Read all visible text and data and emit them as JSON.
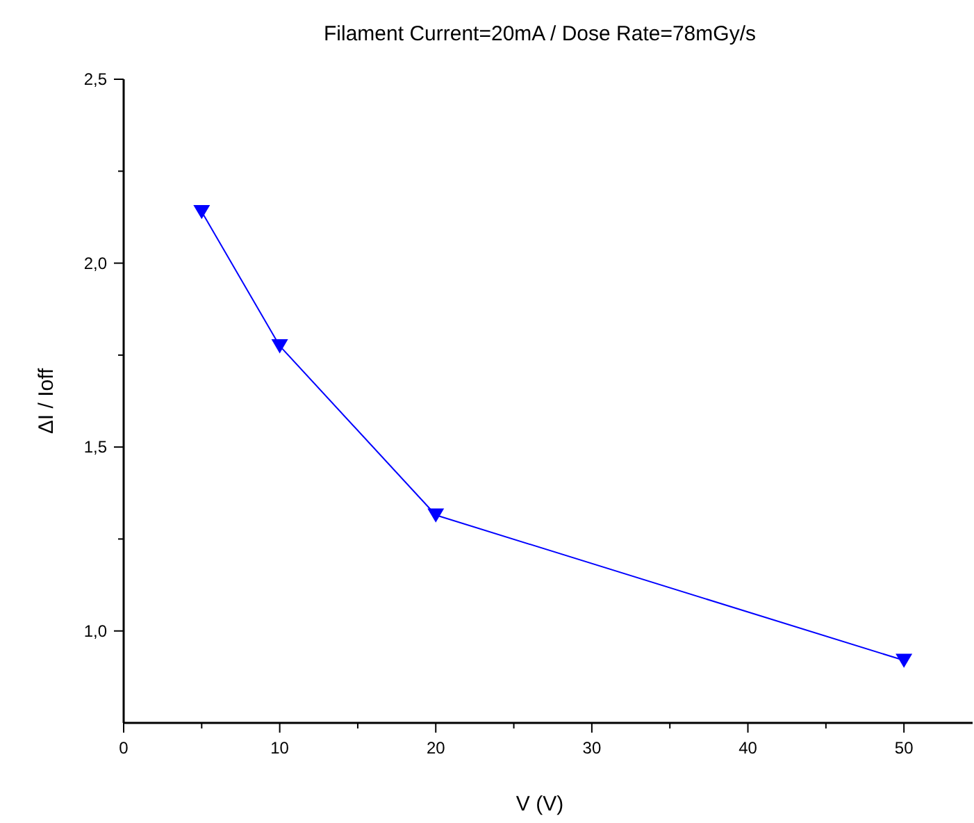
{
  "chart_data": {
    "type": "line",
    "title": "Filament Current=20mA / Dose Rate=78mGy/s",
    "xlabel": "V (V)",
    "ylabel": "ΔI / Ioff",
    "x": [
      5,
      10,
      20,
      50
    ],
    "series": [
      {
        "color": "#0000ff",
        "values": [
          2.14,
          1.775,
          1.315,
          0.92
        ]
      }
    ],
    "marker": "triangle",
    "line_style": "solid",
    "grid": false,
    "xlim": [
      0,
      54.4
    ],
    "xticks": [
      0,
      {
        "value": 5,
        "label": null
      },
      10,
      {
        "value": 15,
        "label": null
      },
      20,
      {
        "value": 25,
        "label": null
      },
      30,
      {
        "value": 35,
        "label": null
      },
      40,
      {
        "value": 45,
        "label": null
      },
      50
    ],
    "ylim": [
      0.75,
      2.5
    ],
    "yticks": [
      {
        "value": 1,
        "label": "1,0"
      },
      {
        "value": 1.25,
        "label": null
      },
      {
        "value": 1.5,
        "label": "1,5"
      },
      {
        "value": 1.75,
        "label": null
      },
      {
        "value": 2,
        "label": "2,0"
      },
      {
        "value": 2.25,
        "label": null
      },
      {
        "value": 2.5,
        "label": "2,5"
      }
    ]
  }
}
